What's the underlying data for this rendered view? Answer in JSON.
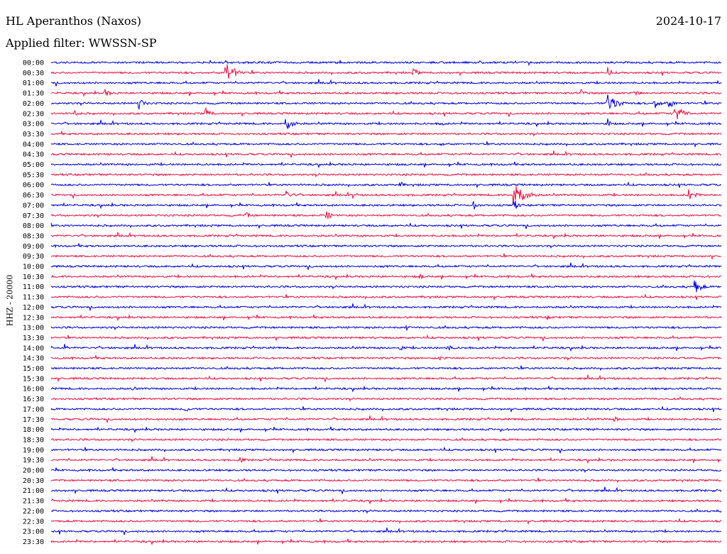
{
  "header": {
    "station": "HL Aperanthos (Naxos)",
    "date": "2024-10-17",
    "filter": "Applied filter: WWSSN-SP"
  },
  "chart_data": {
    "type": "line",
    "title": "HL Aperanthos (Naxos)",
    "ylabel": "HHZ - 20000",
    "xlabel": "",
    "grid": false,
    "colors": [
      "#0000dd",
      "#ee1144"
    ],
    "categories": [
      "00:00",
      "00:30",
      "01:00",
      "01:30",
      "02:00",
      "02:30",
      "03:00",
      "03:30",
      "04:00",
      "04:30",
      "05:00",
      "05:30",
      "06:00",
      "06:30",
      "07:00",
      "07:30",
      "08:00",
      "08:30",
      "09:00",
      "09:30",
      "10:00",
      "10:30",
      "11:00",
      "11:30",
      "12:00",
      "12:30",
      "13:00",
      "13:30",
      "14:00",
      "14:30",
      "15:00",
      "15:30",
      "16:00",
      "16:30",
      "17:00",
      "17:30",
      "18:00",
      "18:30",
      "19:00",
      "19:30",
      "20:00",
      "20:30",
      "21:00",
      "21:30",
      "22:00",
      "22:30",
      "23:00",
      "23:30"
    ],
    "events": [
      {
        "row": 1,
        "x": 0.26,
        "amp": 18,
        "dur": 0.012
      },
      {
        "row": 1,
        "x": 0.54,
        "amp": 7,
        "dur": 0.008
      },
      {
        "row": 1,
        "x": 0.83,
        "amp": 10,
        "dur": 0.004
      },
      {
        "row": 3,
        "x": 0.08,
        "amp": 6,
        "dur": 0.008
      },
      {
        "row": 3,
        "x": 0.79,
        "amp": 6,
        "dur": 0.008
      },
      {
        "row": 3,
        "x": 0.87,
        "amp": 6,
        "dur": 0.008
      },
      {
        "row": 4,
        "x": 0.13,
        "amp": 10,
        "dur": 0.008
      },
      {
        "row": 4,
        "x": 0.83,
        "amp": 14,
        "dur": 0.014
      },
      {
        "row": 4,
        "x": 0.9,
        "amp": 8,
        "dur": 0.01
      },
      {
        "row": 4,
        "x": 0.92,
        "amp": 8,
        "dur": 0.01
      },
      {
        "row": 5,
        "x": 0.035,
        "amp": 6,
        "dur": 0.006
      },
      {
        "row": 5,
        "x": 0.23,
        "amp": 9,
        "dur": 0.008
      },
      {
        "row": 5,
        "x": 0.93,
        "amp": 14,
        "dur": 0.012
      },
      {
        "row": 6,
        "x": 0.35,
        "amp": 12,
        "dur": 0.01
      },
      {
        "row": 6,
        "x": 0.58,
        "amp": 5,
        "dur": 0.006
      },
      {
        "row": 6,
        "x": 0.83,
        "amp": 10,
        "dur": 0.004
      },
      {
        "row": 8,
        "x": 0.58,
        "amp": 5,
        "dur": 0.006
      },
      {
        "row": 12,
        "x": 0.52,
        "amp": 9,
        "dur": 0.004
      },
      {
        "row": 13,
        "x": 0.35,
        "amp": 7,
        "dur": 0.01
      },
      {
        "row": 13,
        "x": 0.45,
        "amp": 5,
        "dur": 0.008
      },
      {
        "row": 13,
        "x": 0.69,
        "amp": 22,
        "dur": 0.014
      },
      {
        "row": 13,
        "x": 0.95,
        "amp": 10,
        "dur": 0.01
      },
      {
        "row": 14,
        "x": 0.63,
        "amp": 7,
        "dur": 0.008
      },
      {
        "row": 14,
        "x": 0.69,
        "amp": 10,
        "dur": 0.006
      },
      {
        "row": 15,
        "x": 0.29,
        "amp": 5,
        "dur": 0.01
      },
      {
        "row": 15,
        "x": 0.41,
        "amp": 8,
        "dur": 0.008
      },
      {
        "row": 21,
        "x": 0.55,
        "amp": 6,
        "dur": 0.004
      },
      {
        "row": 22,
        "x": 0.96,
        "amp": 11,
        "dur": 0.01
      },
      {
        "row": 25,
        "x": 0.74,
        "amp": 4,
        "dur": 0.008
      },
      {
        "row": 26,
        "x": 0.53,
        "amp": 6,
        "dur": 0.004
      },
      {
        "row": 28,
        "x": 0.02,
        "amp": 6,
        "dur": 0.004
      },
      {
        "row": 28,
        "x": 0.52,
        "amp": 4,
        "dur": 0.01
      },
      {
        "row": 28,
        "x": 0.59,
        "amp": 5,
        "dur": 0.01
      },
      {
        "row": 29,
        "x": 0.58,
        "amp": 4,
        "dur": 0.008
      },
      {
        "row": 32,
        "x": 0.12,
        "amp": 4,
        "dur": 0.008
      },
      {
        "row": 34,
        "x": 0.2,
        "amp": 6,
        "dur": 0.006
      },
      {
        "row": 35,
        "x": 0.84,
        "amp": 4,
        "dur": 0.01
      },
      {
        "row": 36,
        "x": 0.67,
        "amp": 4,
        "dur": 0.004
      },
      {
        "row": 39,
        "x": 0.28,
        "amp": 4,
        "dur": 0.012
      }
    ]
  }
}
